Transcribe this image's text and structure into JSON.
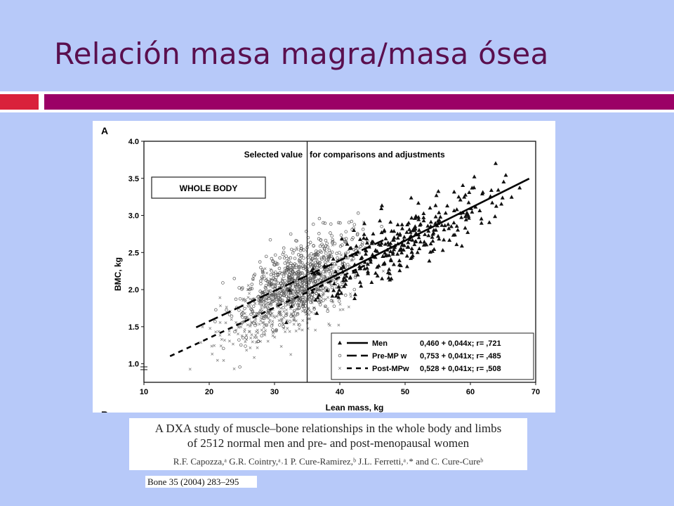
{
  "slide": {
    "title": "Relación masa magra/masa ósea",
    "colors": {
      "background": "#b7c9f9",
      "title": "#5a0f4e",
      "bar_red": "#d9213b",
      "bar_purple": "#9b0066"
    }
  },
  "chart_data": {
    "type": "scatter",
    "panel_label": "A",
    "panel_label_next": "B",
    "xlabel": "Lean mass, kg",
    "ylabel": "BMC, kg",
    "xlim": [
      10,
      70
    ],
    "ylim": [
      0.75,
      4.0
    ],
    "xticks": [
      10,
      20,
      30,
      40,
      50,
      60,
      70
    ],
    "yticks": [
      1.0,
      1.5,
      2.0,
      2.5,
      3.0,
      3.5,
      4.0
    ],
    "ytick_labels": [
      "1.0",
      "1.5",
      "2.0",
      "2.5",
      "3.0",
      "3.5",
      "4.0"
    ],
    "box_label": "WHOLE BODY",
    "reference_line": {
      "x": 35,
      "label_left": "Selected value",
      "label_right": "for comparisons and adjustments"
    },
    "legend_position": "bottom-right",
    "series": [
      {
        "name": "Men",
        "marker": "triangle",
        "line": "solid",
        "equation": "0,460 + 0,044x; r= ,721",
        "intercept": 0.46,
        "slope": 0.044,
        "line_x": [
          35,
          69
        ],
        "cloud": {
          "center_x": 50,
          "sd_x": 7.5,
          "residual_sd": 0.22,
          "n": 320
        }
      },
      {
        "name": "Pre-MP w",
        "marker": "circle",
        "line": "long-dash",
        "equation": "0,753 + 0,041x; r= ,485",
        "intercept": 0.753,
        "slope": 0.041,
        "line_x": [
          18,
          47
        ],
        "cloud": {
          "center_x": 34,
          "sd_x": 4.5,
          "residual_sd": 0.24,
          "n": 650
        }
      },
      {
        "name": "Post-MPw",
        "marker": "cross",
        "line": "short-dash",
        "equation": "0,528 + 0,041x; r= ,508",
        "intercept": 0.528,
        "slope": 0.041,
        "line_x": [
          14,
          44
        ],
        "cloud": {
          "center_x": 32,
          "sd_x": 5,
          "residual_sd": 0.24,
          "n": 500
        }
      }
    ]
  },
  "paper": {
    "title_line1": "A DXA study of muscle–bone relationships in the whole body and limbs",
    "title_line2": "of 2512 normal men and pre- and post-menopausal women",
    "authors": "R.F. Capozza,ᵃ G.R. Cointry,ᵃ˒1 P. Cure-Ramirez,ᵇ J.L. Ferretti,ᵃ˒* and C. Cure-Cureᵇ",
    "journal": "Bone 35 (2004) 283–295"
  }
}
